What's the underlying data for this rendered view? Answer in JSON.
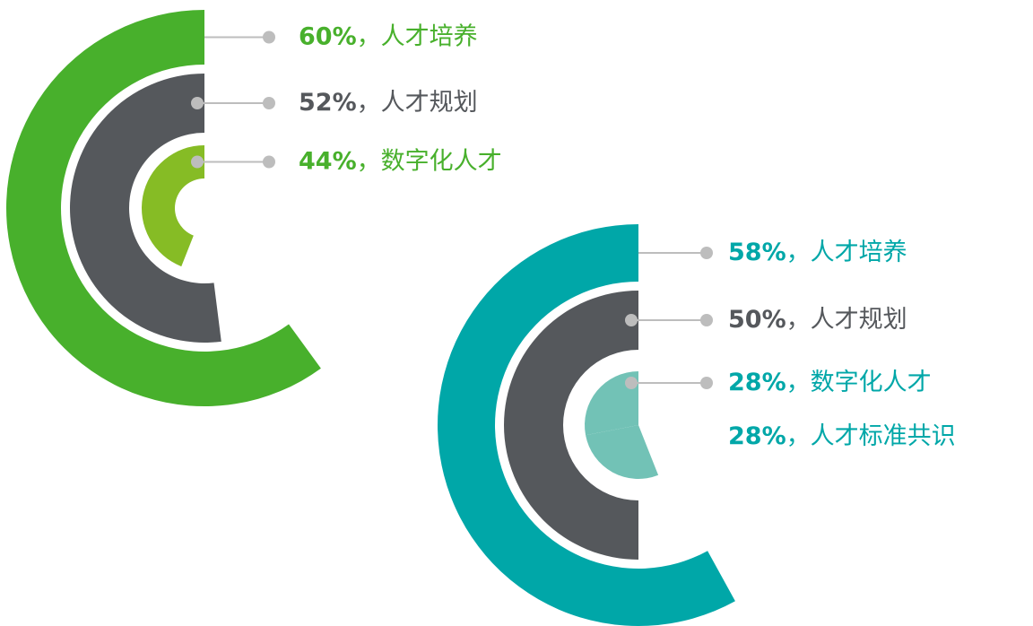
{
  "chart_data": [
    {
      "type": "radial_bar",
      "separator": "，",
      "rings": [
        {
          "color": "#48b02c",
          "label_color": "#48b02c",
          "segments": [
            {
              "label": "人才培养",
              "value": 60,
              "value_label": "60%"
            }
          ]
        },
        {
          "color": "#55585c",
          "label_color": "#55585c",
          "segments": [
            {
              "label": "人才规划",
              "value": 52,
              "value_label": "52%"
            }
          ]
        },
        {
          "color": "#86bc25",
          "label_color": "#48b02c",
          "segments": [
            {
              "label": "数字化人才",
              "value": 44,
              "value_label": "44%"
            }
          ]
        }
      ]
    },
    {
      "type": "radial_bar",
      "separator": "，",
      "rings": [
        {
          "color": "#00a7a8",
          "label_color": "#00a7a8",
          "segments": [
            {
              "label": "人才培养",
              "value": 58,
              "value_label": "58%"
            }
          ]
        },
        {
          "color": "#55585c",
          "label_color": "#55585c",
          "segments": [
            {
              "label": "人才规划",
              "value": 50,
              "value_label": "50%"
            }
          ]
        },
        {
          "color": "#72c2b6",
          "label_color": "#00a7a8",
          "segments": [
            {
              "label": "数字化人才",
              "value": 28,
              "value_label": "28%"
            },
            {
              "label": "人才标准共识",
              "value": 28,
              "value_label": "28%"
            }
          ]
        }
      ]
    }
  ]
}
